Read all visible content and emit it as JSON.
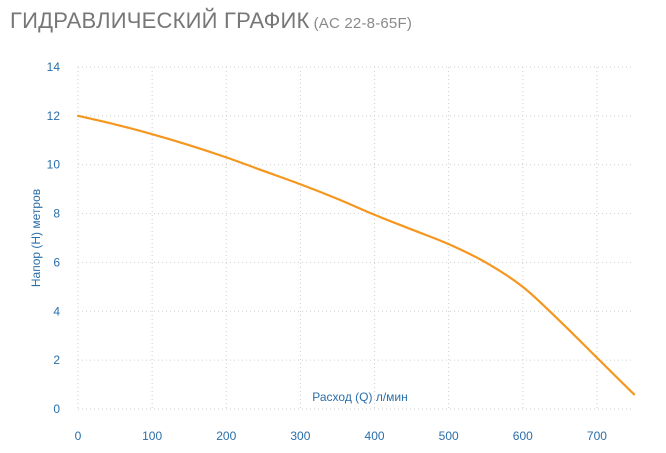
{
  "header": {
    "title": "ГИДРАВЛИЧЕСКИЙ ГРАФИК",
    "model": "(AC 22-8-65F)"
  },
  "chart_data": {
    "type": "line",
    "xlabel": "Расход (Q) л/мин",
    "ylabel": "Напор (H) метров",
    "xlim": [
      0,
      750
    ],
    "ylim": [
      0,
      14
    ],
    "x_ticks": [
      0,
      100,
      200,
      300,
      400,
      500,
      600,
      700
    ],
    "y_ticks": [
      0,
      2,
      4,
      6,
      8,
      10,
      12,
      14
    ],
    "grid": true,
    "series": [
      {
        "color": "#f5961e",
        "x": [
          0,
          50,
          100,
          150,
          200,
          250,
          300,
          350,
          400,
          450,
          500,
          550,
          600,
          650,
          700,
          750
        ],
        "values": [
          12.0,
          11.65,
          11.25,
          10.8,
          10.3,
          9.75,
          9.2,
          8.6,
          7.95,
          7.35,
          6.75,
          6.0,
          5.0,
          3.6,
          2.1,
          0.6
        ]
      }
    ]
  }
}
